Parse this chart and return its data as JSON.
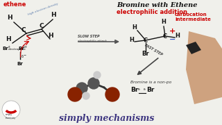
{
  "bg_color": "#f0f0eb",
  "title_text": "Bromine with Ethene",
  "subtitle_text": "electrophilic addition",
  "footer_text": "simply mechanisms",
  "ethene_label": "ethene",
  "carbocation_label": "carbocation\nintermediate",
  "slow_step_label": "SLOW STEP\nelectrophilic attack",
  "fast_step_label": "FAST STEP",
  "bromine_nonpolar": "Bromine is a non-po",
  "title_color": "#111111",
  "subtitle_color": "#cc0000",
  "ethene_color": "#cc0000",
  "carbocation_color": "#cc0000",
  "footer_color": "#3d3580",
  "arrow_color": "#555555",
  "bond_color": "#111111",
  "br_color": "#cc0000",
  "blue_text_color": "#5577aa",
  "slow_arrow_color": "#555555",
  "fast_arrow_color": "#444444"
}
